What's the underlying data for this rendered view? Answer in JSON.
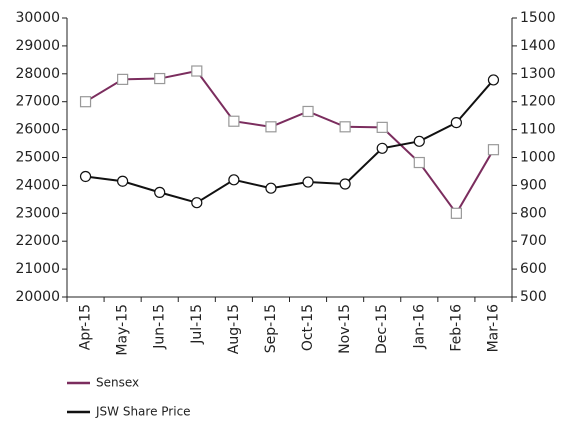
{
  "chart_data": {
    "type": "line",
    "categories": [
      "Apr-15",
      "May-15",
      "Jun-15",
      "Jul-15",
      "Aug-15",
      "Sep-15",
      "Oct-15",
      "Nov-15",
      "Dec-15",
      "Jan-16",
      "Feb-16",
      "Mar-16"
    ],
    "series": [
      {
        "name": "Sensex",
        "color": "#7b2d5e",
        "marker": "square",
        "axis": "y",
        "values": [
          27000,
          27800,
          27830,
          28100,
          26300,
          26100,
          26650,
          26100,
          26080,
          24820,
          23000,
          25280
        ]
      },
      {
        "name": "JSW Share Price",
        "color": "#111111",
        "marker": "circle",
        "axis": "y2",
        "values": [
          932,
          915,
          875,
          838,
          920,
          890,
          912,
          905,
          1033,
          1058,
          1125,
          1278
        ]
      }
    ],
    "ylim": [
      20000,
      30000
    ],
    "yticks": [
      20000,
      21000,
      22000,
      23000,
      24000,
      25000,
      26000,
      27000,
      28000,
      29000,
      30000
    ],
    "y2lim": [
      500,
      1500
    ],
    "y2ticks": [
      500,
      600,
      700,
      800,
      900,
      1000,
      1100,
      1200,
      1300,
      1400,
      1500
    ],
    "grid": false,
    "legend": "bottom-left"
  }
}
